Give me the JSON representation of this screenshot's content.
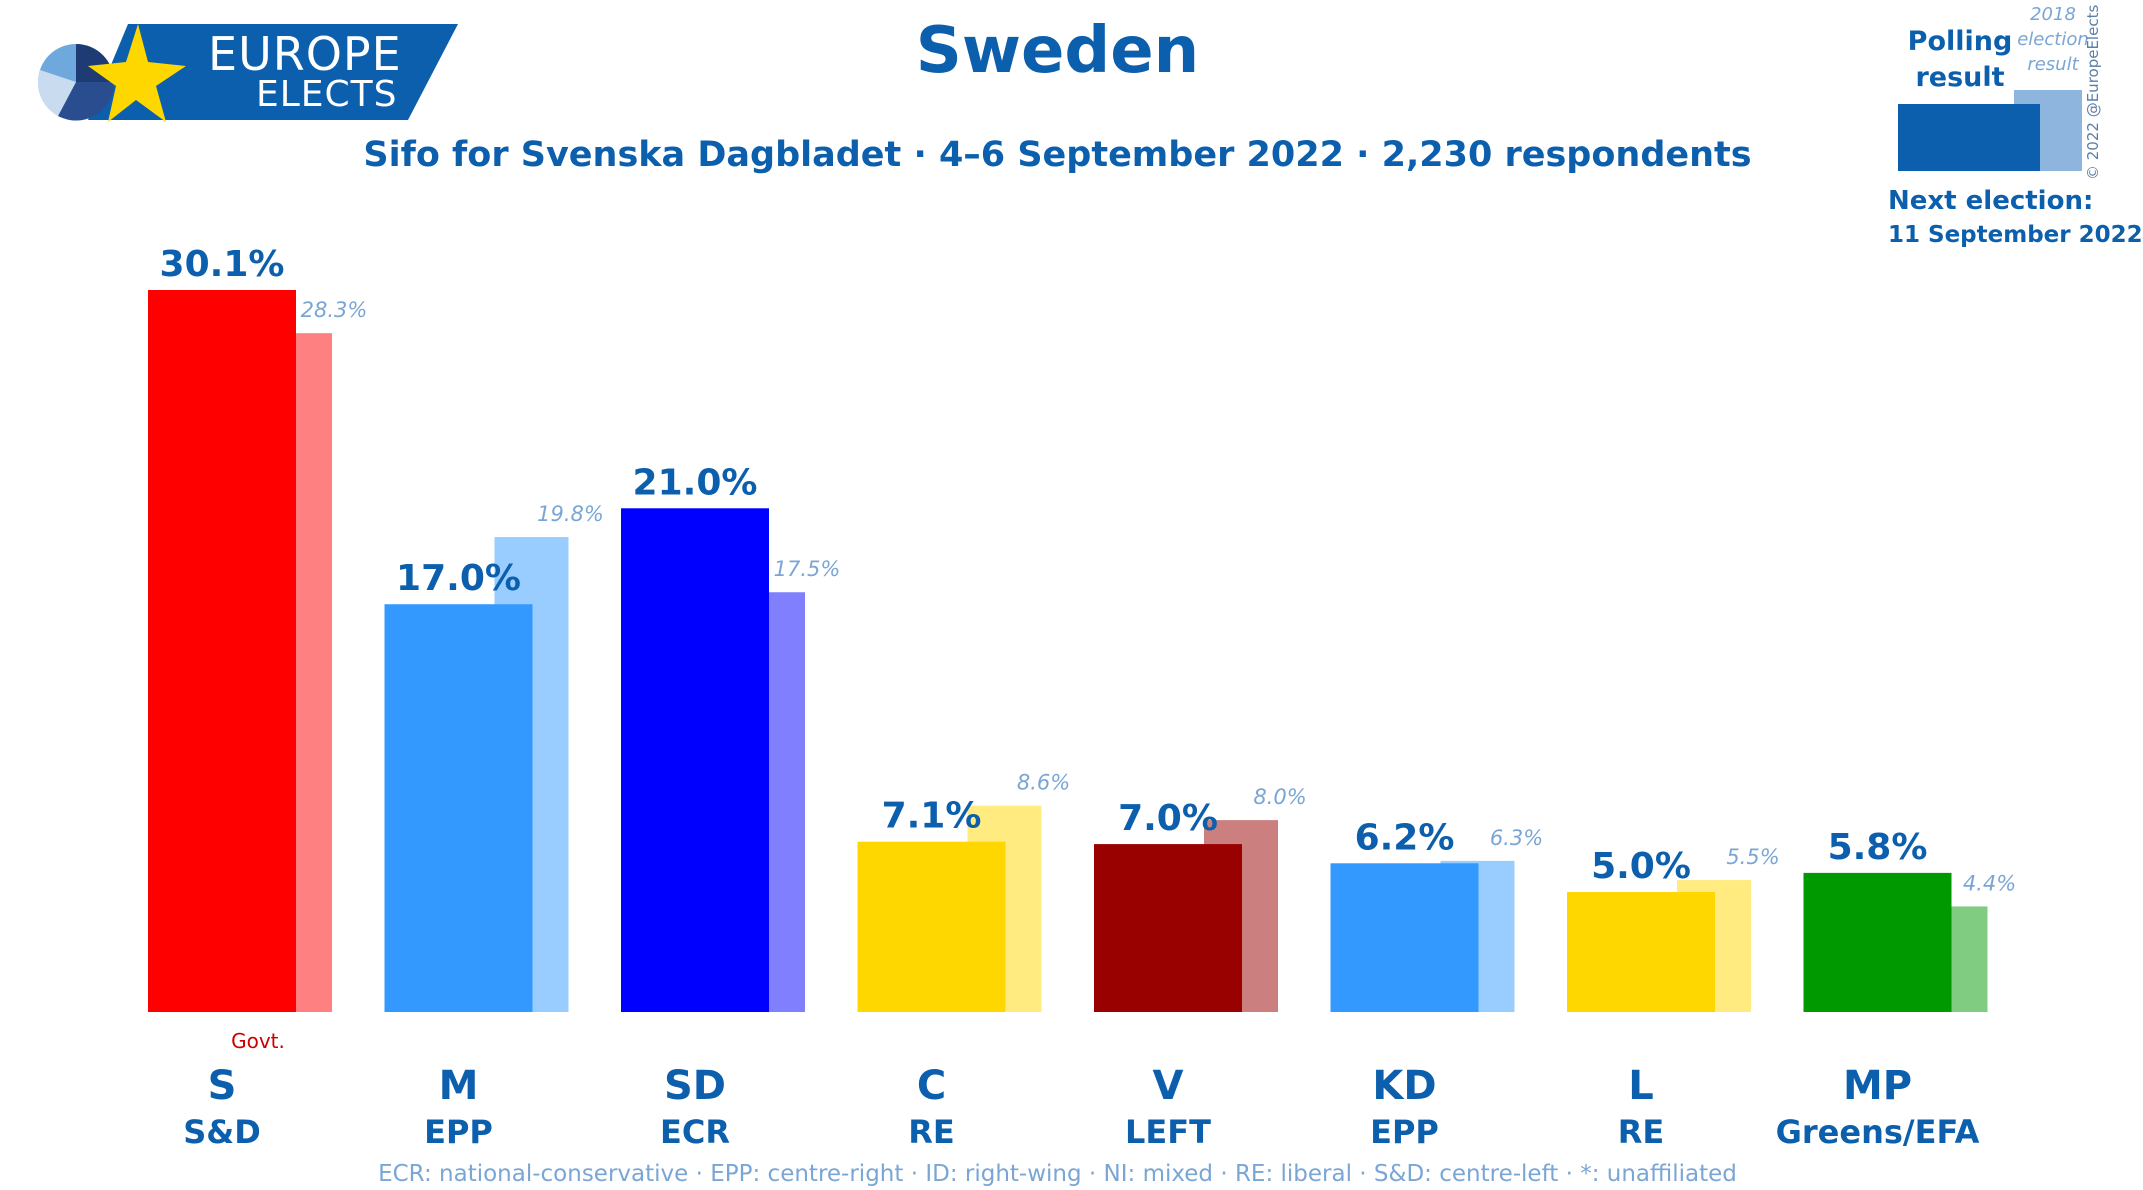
{
  "brand": {
    "line1": "EUROPE",
    "line2": "ELECTS"
  },
  "title": "Sweden",
  "subtitle": "Sifo for Svenska Dagbladet · 4–6 September 2022 · 2,230 respondents",
  "legend": {
    "polling_label": "Polling result",
    "previous_label": "2018 election result"
  },
  "next_election": {
    "label": "Next election:",
    "date": "11 September 2022"
  },
  "copyright": "© 2022 @EuropeElects",
  "footnote": "ECR: national-conservative · EPP: centre-right · ID: right-wing · NI: mixed · RE: liberal · S&D: centre-left · *: unaffiliated",
  "colors": {
    "brand_blue": "#0b5fad",
    "previous_label": "#7aa6d6"
  },
  "chart_data": {
    "type": "bar",
    "title": "Sweden",
    "categories": [
      "S",
      "M",
      "SD",
      "C",
      "V",
      "KD",
      "L",
      "MP"
    ],
    "groups": [
      "S&D",
      "EPP",
      "ECR",
      "RE",
      "LEFT",
      "EPP",
      "RE",
      "Greens/EFA"
    ],
    "series": [
      {
        "name": "Polling result",
        "values": [
          30.1,
          17.0,
          21.0,
          7.1,
          7.0,
          6.2,
          5.0,
          5.8
        ],
        "labels": [
          "30.1%",
          "17.0%",
          "21.0%",
          "7.1%",
          "7.0%",
          "6.2%",
          "5.0%",
          "5.8%"
        ]
      },
      {
        "name": "2018 election result",
        "values": [
          28.3,
          19.8,
          17.5,
          8.6,
          8.0,
          6.3,
          5.5,
          4.4
        ],
        "labels": [
          "28.3%",
          "19.8%",
          "17.5%",
          "8.6%",
          "8.0%",
          "6.3%",
          "5.5%",
          "4.4%"
        ]
      }
    ],
    "colors": {
      "polling": [
        "#ff0000",
        "#3399ff",
        "#0000ff",
        "#ffd700",
        "#990000",
        "#3399ff",
        "#ffd700",
        "#009900"
      ],
      "previous": [
        "#ff8080",
        "#99ccff",
        "#8080ff",
        "#ffeb80",
        "#cc7f7f",
        "#99ccff",
        "#ffeb80",
        "#80cc80"
      ]
    },
    "annotations": [
      {
        "category": "S",
        "text": "Govt."
      }
    ],
    "ylim": [
      0,
      30.1
    ],
    "grid": false,
    "legend_position": "top-right"
  }
}
